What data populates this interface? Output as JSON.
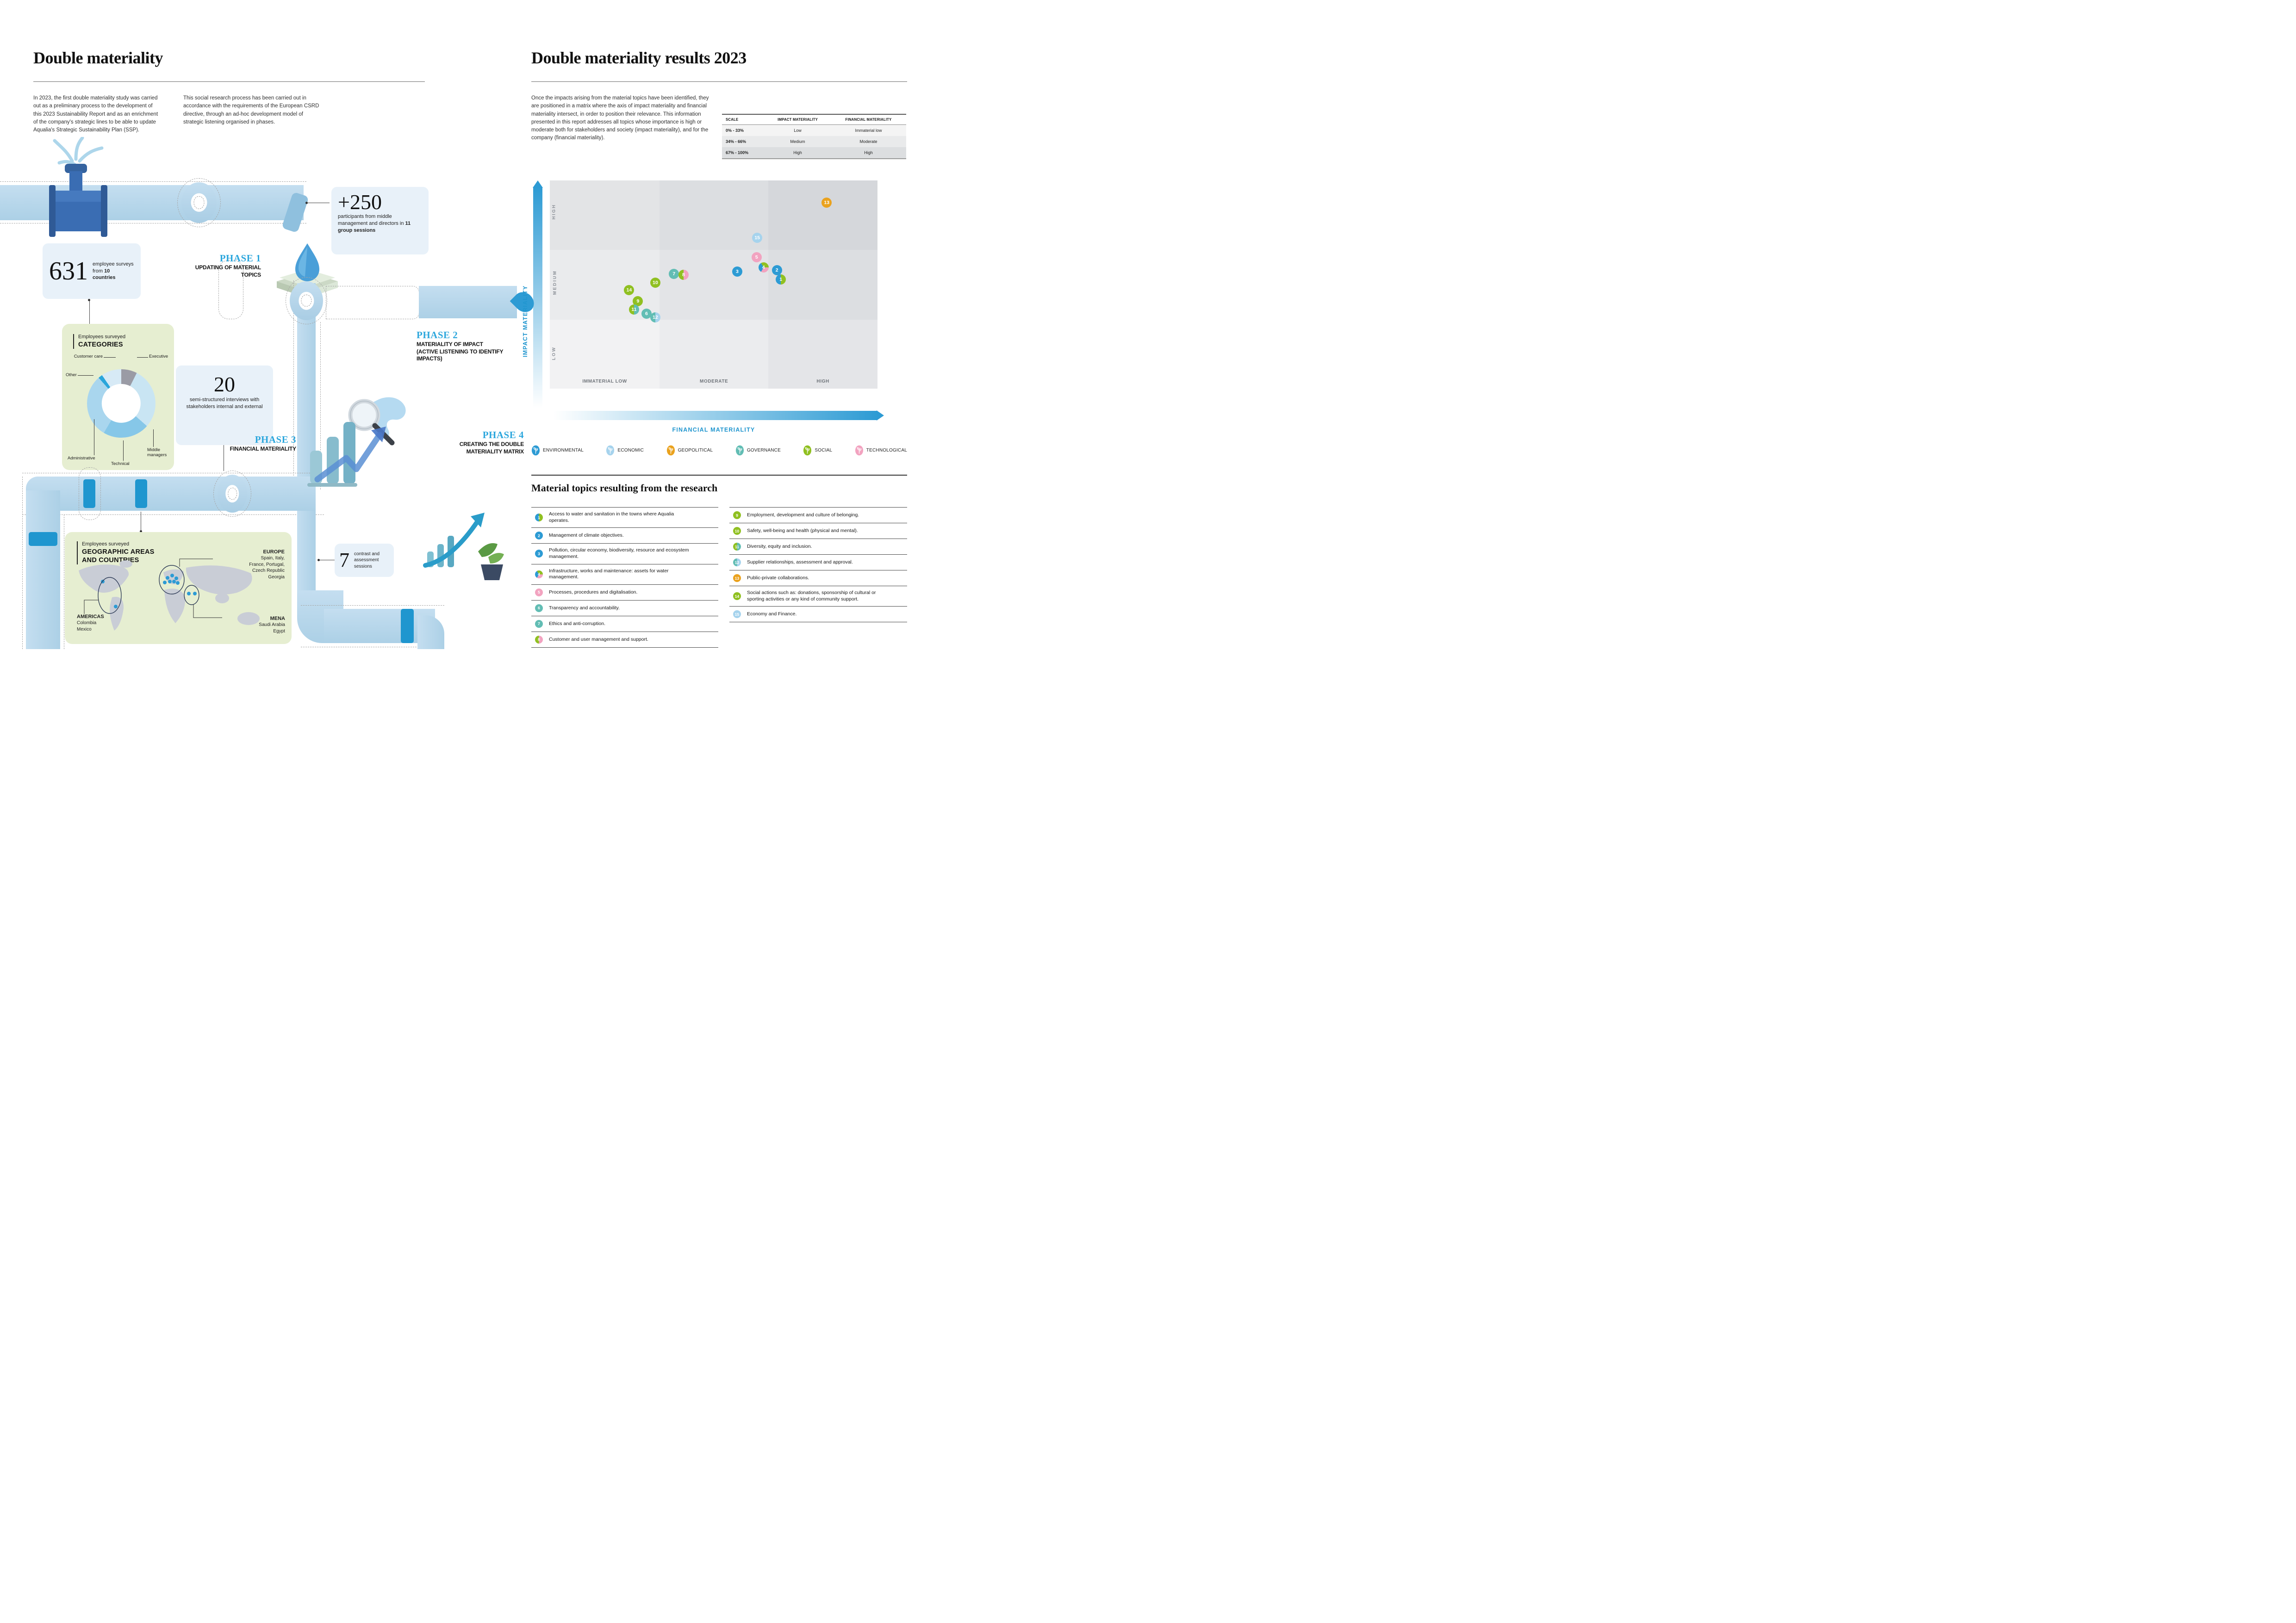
{
  "left": {
    "title": "Double materiality",
    "intro_col1": "In 2023, the first double materiality study was carried out as a preliminary process to the development of this 2023 Sustainability Report and as an enrichment of the company's strategic lines to be able to update Aqualia's Strategic Sustainability Plan (SSP).",
    "intro_col2": "This social research process has been carried out in accordance with the requirements of the European CSRD directive, through an ad-hoc development model of strategic listening organised in phases.",
    "stat_631": {
      "value": "631",
      "line1": "employee surveys",
      "line2_pre": "from ",
      "line2_bold": "10",
      "line3_bold": "countries"
    },
    "stat_250": {
      "value": "+250",
      "pre": "participants from middle management and directors in ",
      "bold": "11 group sessions"
    },
    "stat_20": {
      "value": "20",
      "text": "semi-structured interviews with stakeholders internal and external"
    },
    "stat_7": {
      "value": "7",
      "text": "contrast and assessment sessions"
    },
    "phase1": {
      "label": "PHASE 1",
      "title": "UPDATING OF MATERIAL TOPICS"
    },
    "phase2": {
      "label": "PHASE 2",
      "title": "MATERIALITY OF IMPACT",
      "subtitle": "(ACTIVE LISTENING TO IDENTIFY IMPACTS)"
    },
    "phase3": {
      "label": "PHASE 3",
      "title": "FINANCIAL MATERIALITY"
    },
    "phase4": {
      "label": "PHASE 4",
      "title": "CREATING THE DOUBLE MATERIALITY MATRIX"
    },
    "categories": {
      "kicker": "Employees surveyed",
      "title": "CATEGORIES"
    },
    "geo": {
      "kicker": "Employees surveyed",
      "title": "GEOGRAPHIC AREAS\nAND COUNTRIES",
      "europe_label": "EUROPE",
      "europe_countries": "Spain, Italy,\nFrance, Portugal,\nCzech Republic\nGeorgia",
      "americas_label": "AMERICAS",
      "americas_countries": "Colombia\nMexico",
      "mena_label": "MENA",
      "mena_countries": "Saudi Arabia\nEgypt"
    }
  },
  "right": {
    "title": "Double materiality results 2023",
    "intro": "Once the impacts arising from the material topics have been identified, they are positioned in a matrix where the axis of impact materiality and financial materiality intersect, in order to position their relevance. This information presented in this report addresses all topics whose importance is high or moderate both for stakeholders and society (impact materiality), and for the company (financial materiality).",
    "scale_table": {
      "headers": [
        "SCALE",
        "IMPACT MATERIALITY",
        "FINANCIAL MATERIALITY"
      ],
      "rows": [
        [
          "0% - 33%",
          "Low",
          "Immaterial low"
        ],
        [
          "34% - 66%",
          "Medium",
          "Moderate"
        ],
        [
          "67% - 100%",
          "High",
          "High"
        ]
      ]
    },
    "matrix": {
      "y_axis": "IMPACT MATERIALITY",
      "x_axis": "FINANCIAL MATERIALITY",
      "row_labels": [
        "HIGH",
        "MEDIUM",
        "LOW"
      ],
      "col_labels": [
        "IMMATERIAL LOW",
        "MODERATE",
        "HIGH"
      ]
    },
    "category_colors": {
      "environmental": "#2d9bd4",
      "economic": "#a6d3ed",
      "geopolitical": "#eaa21e",
      "governance": "#62bdb4",
      "social": "#90c021",
      "technological": "#f2a3c0"
    },
    "legend": [
      {
        "label": "ENVIRONMENTAL",
        "cat": "environmental"
      },
      {
        "label": "ECONOMIC",
        "cat": "economic"
      },
      {
        "label": "GEOPOLITICAL",
        "cat": "geopolitical"
      },
      {
        "label": "GOVERNANCE",
        "cat": "governance"
      },
      {
        "label": "SOCIAL",
        "cat": "social"
      },
      {
        "label": "TECHNOLOGICAL",
        "cat": "technological"
      }
    ],
    "topics_title": "Material topics resulting from the research",
    "topics_col1": [
      {
        "num": "1",
        "text": "Access to water and sanitation in the towns where Aqualia operates.",
        "cats": [
          "environmental",
          "social"
        ]
      },
      {
        "num": "2",
        "text": "Management of climate objectives.",
        "cats": [
          "environmental"
        ]
      },
      {
        "num": "3",
        "text": "Pollution, circular economy, biodiversity, resource and ecosystem management.",
        "cats": [
          "environmental"
        ]
      },
      {
        "num": "4",
        "text": "Infrastructure, works and maintenance: assets for water management.",
        "cats": [
          "environmental",
          "social",
          "technological"
        ]
      },
      {
        "num": "5",
        "text": "Processes, procedures and digitalisation.",
        "cats": [
          "technological"
        ]
      },
      {
        "num": "6",
        "text": "Transparency and accountability.",
        "cats": [
          "governance"
        ]
      },
      {
        "num": "7",
        "text": "Ethics and anti-corruption.",
        "cats": [
          "governance"
        ]
      },
      {
        "num": "8",
        "text": "Customer and user management and support.",
        "cats": [
          "social",
          "technological"
        ]
      }
    ],
    "topics_col2": [
      {
        "num": "9",
        "text": "Employment, development and culture of belonging.",
        "cats": [
          "social"
        ]
      },
      {
        "num": "10",
        "text": "Safety, well-being and health (physical and mental).",
        "cats": [
          "social"
        ]
      },
      {
        "num": "11",
        "text": "Diversity, equity and inclusion.",
        "cats": [
          "social",
          "governance"
        ]
      },
      {
        "num": "12",
        "text": "Supplier relationships, assessment and approval.",
        "cats": [
          "governance",
          "economic"
        ]
      },
      {
        "num": "13",
        "text": "Public-private collaborations.",
        "cats": [
          "geopolitical"
        ]
      },
      {
        "num": "14",
        "text": "Social actions such as: donations, sponsorship of cultural or sporting activities or any kind of community support.",
        "cats": [
          "social"
        ]
      },
      {
        "num": "15",
        "text": "Economy and Finance.",
        "cats": [
          "economic"
        ]
      }
    ]
  },
  "chart_data": [
    {
      "type": "pie",
      "title": "Employees surveyed CATEGORIES",
      "labels": [
        "Executive",
        "Middle managers",
        "Technical",
        "Administrative",
        "Other",
        "Customer care"
      ],
      "values": [
        7.5,
        29,
        22,
        30,
        2,
        9.5
      ],
      "colors": [
        "#9a9ba5",
        "#c9e5f3",
        "#86c7e8",
        "#a9d6ee",
        "#2aa6db",
        "#d7eaf6"
      ],
      "note": "values estimated from slice angles, donut chart, no numeric labels shown"
    },
    {
      "type": "scatter",
      "title": "Double materiality results 2023",
      "xlabel": "FINANCIAL MATERIALITY",
      "ylabel": "IMPACT MATERIALITY",
      "xlim": [
        0,
        100
      ],
      "ylim": [
        0,
        100
      ],
      "x_zones": [
        "IMMATERIAL LOW (0-33%)",
        "MODERATE (34-66%)",
        "HIGH (67-100%)"
      ],
      "y_zones": [
        "LOW (0-33%)",
        "MEDIUM (34-66%)",
        "HIGH (67-100%)"
      ],
      "points": [
        {
          "id": 1,
          "x": 70.5,
          "y": 52.5,
          "categories": [
            "environmental",
            "social"
          ],
          "topic": "Access to water and sanitation in the towns where Aqualia operates."
        },
        {
          "id": 2,
          "x": 69.3,
          "y": 57.0,
          "categories": [
            "environmental"
          ],
          "topic": "Management of climate objectives."
        },
        {
          "id": 3,
          "x": 57.2,
          "y": 56.3,
          "categories": [
            "environmental"
          ],
          "topic": "Pollution, circular economy, biodiversity, resource and ecosystem management."
        },
        {
          "id": 4,
          "x": 65.2,
          "y": 58.3,
          "categories": [
            "environmental",
            "social",
            "technological"
          ],
          "topic": "Infrastructure, works and maintenance: assets for water management."
        },
        {
          "id": 5,
          "x": 63.1,
          "y": 63.2,
          "categories": [
            "technological"
          ],
          "topic": "Processes, procedures and digitalisation."
        },
        {
          "id": 6,
          "x": 29.5,
          "y": 35.9,
          "categories": [
            "governance"
          ],
          "topic": "Transparency and accountability."
        },
        {
          "id": 7,
          "x": 37.9,
          "y": 55.1,
          "categories": [
            "governance"
          ],
          "topic": "Ethics and anti-corruption."
        },
        {
          "id": 8,
          "x": 40.8,
          "y": 54.7,
          "categories": [
            "social",
            "technological"
          ],
          "topic": "Customer and user management and support."
        },
        {
          "id": 9,
          "x": 26.9,
          "y": 42.0,
          "categories": [
            "social"
          ],
          "topic": "Employment, development and culture of belonging."
        },
        {
          "id": 10,
          "x": 32.2,
          "y": 50.8,
          "categories": [
            "social"
          ],
          "topic": "Safety, well-being and health (physical and mental)."
        },
        {
          "id": 11,
          "x": 25.7,
          "y": 38.0,
          "categories": [
            "social",
            "governance"
          ],
          "topic": "Diversity, equity and inclusion."
        },
        {
          "id": 12,
          "x": 32.2,
          "y": 34.3,
          "categories": [
            "governance",
            "economic"
          ],
          "topic": "Supplier relationships, assessment and approval."
        },
        {
          "id": 13,
          "x": 84.5,
          "y": 89.3,
          "categories": [
            "geopolitical"
          ],
          "topic": "Public-private collaborations."
        },
        {
          "id": 14,
          "x": 24.2,
          "y": 47.4,
          "categories": [
            "social"
          ],
          "topic": "Social actions such as: donations, sponsorship of cultural or sporting activities or any kind of community support."
        },
        {
          "id": 15,
          "x": 63.3,
          "y": 72.4,
          "categories": [
            "economic"
          ],
          "topic": "Economy and Finance."
        }
      ]
    }
  ]
}
